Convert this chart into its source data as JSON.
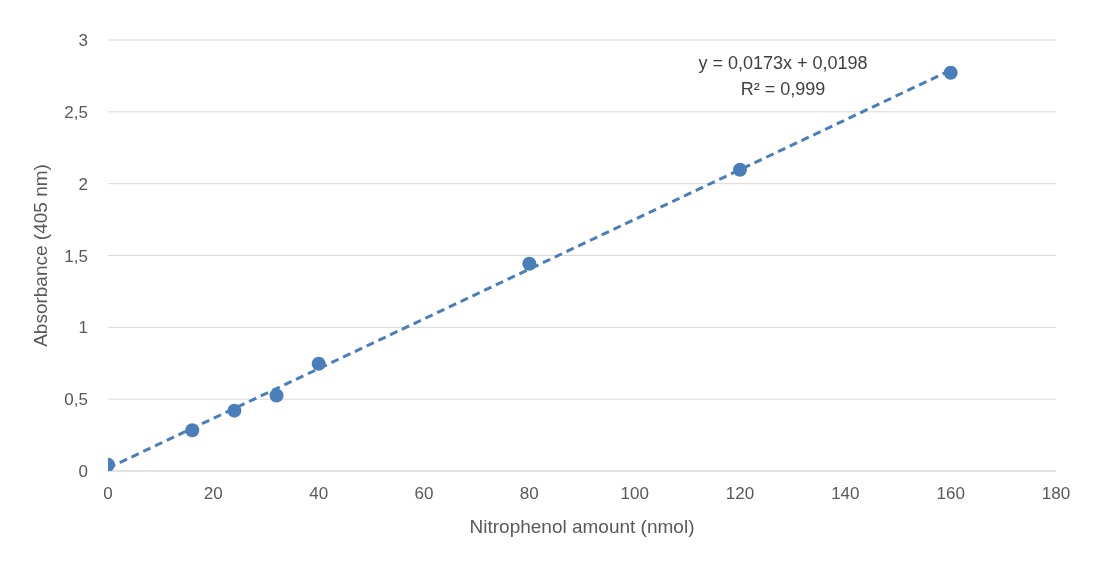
{
  "chart_data": {
    "type": "scatter",
    "xlabel": "Nitrophenol amount (nmol)",
    "ylabel": "Absorbance (405 nm)",
    "annotations": [
      "y = 0,0173x + 0,0198",
      "R² = 0,999"
    ],
    "series": [
      {
        "marker": "circle",
        "color": "#4a7ebb",
        "x": [
          0,
          16,
          24,
          32,
          40,
          80,
          120,
          160
        ],
        "values": [
          0.043,
          0.284,
          0.42,
          0.526,
          0.746,
          1.443,
          2.097,
          2.772
        ]
      },
      {
        "type": "line",
        "color": "#4a7ebb",
        "line_style": "dashed",
        "x": [
          0,
          160
        ],
        "values": [
          0.02,
          2.79
        ]
      }
    ],
    "xlim": [
      0,
      180
    ],
    "xticks": [
      0,
      20,
      40,
      60,
      80,
      100,
      120,
      140,
      160,
      180
    ],
    "ylim": [
      0,
      3
    ],
    "yticks": [
      0,
      {
        "value": 0.5,
        "label": "0,5"
      },
      1,
      {
        "value": 1.5,
        "label": "1,5"
      },
      2,
      {
        "value": 2.5,
        "label": "2,5"
      },
      3
    ],
    "grid": "y"
  }
}
